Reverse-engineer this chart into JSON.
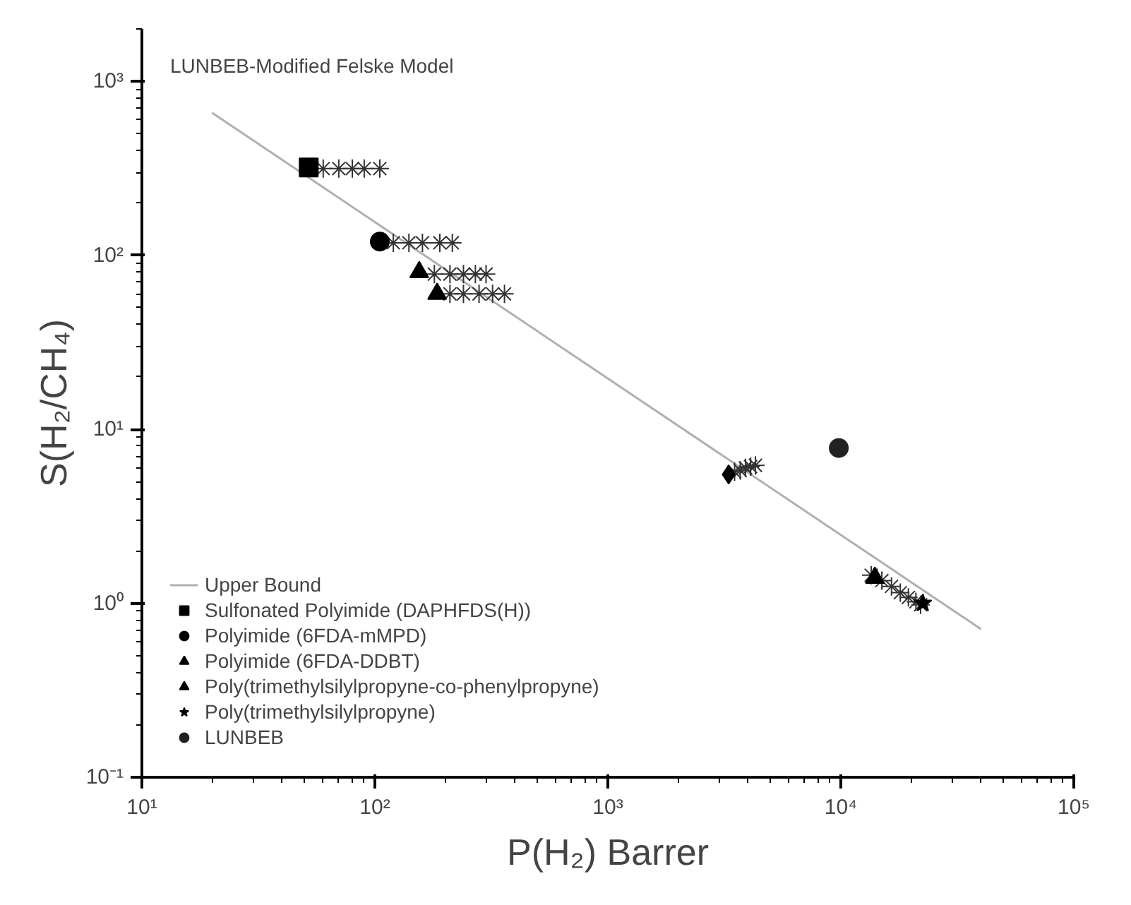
{
  "chart_data": {
    "type": "scatter",
    "title": "LUNBEB-Modified Felske Model",
    "xlabel": "P(H₂) Barrer",
    "ylabel": "S(H₂/CH₄)",
    "log": "xy",
    "grid": false,
    "legend": "bottom left",
    "xlim": [
      10,
      100000
    ],
    "ylim": [
      0.1,
      2000
    ],
    "xticks": [
      {
        "value": 10,
        "label": "10¹"
      },
      {
        "value": 100,
        "label": "10²"
      },
      {
        "value": 1000,
        "label": "10³"
      },
      {
        "value": 10000,
        "label": "10⁴"
      },
      {
        "value": 100000,
        "label": "10⁵"
      }
    ],
    "yticks": [
      {
        "value": 0.1,
        "label": "10⁻¹"
      },
      {
        "value": 1,
        "label": "10⁰"
      },
      {
        "value": 10,
        "label": "10¹"
      },
      {
        "value": 100,
        "label": "10²"
      },
      {
        "value": 1000,
        "label": "10³"
      }
    ],
    "series": [
      {
        "name": "Upper Bound",
        "type": "line",
        "color": "#b0b0b0",
        "marker": "none",
        "x": [
          20,
          40000
        ],
        "values": [
          660,
          0.71
        ]
      },
      {
        "color": "#333333",
        "marker": "cross",
        "x": [
          60,
          70,
          80,
          90,
          105,
          120,
          140,
          160,
          190,
          215,
          180,
          210,
          240,
          270,
          300,
          210,
          240,
          280,
          320,
          360,
          3500,
          3700,
          3900,
          4100,
          4300,
          13500,
          15000,
          16500,
          18000,
          19500,
          21000,
          22000
        ],
        "values": [
          315,
          315,
          315,
          315,
          315,
          118,
          118,
          118,
          118,
          118,
          78,
          78,
          78,
          78,
          78,
          60,
          60,
          60,
          60,
          60,
          5.7,
          5.8,
          6.0,
          6.1,
          6.2,
          1.45,
          1.35,
          1.25,
          1.15,
          1.08,
          1.02,
          0.98
        ]
      },
      {
        "name": "Sulfonated Polyimide (DAPHFDS(H))",
        "color": "#000000",
        "marker": "square",
        "x": [
          52
        ],
        "values": [
          320
        ]
      },
      {
        "name": "Polyimide (6FDA-mMPD)",
        "color": "#000000",
        "marker": "circle",
        "x": [
          105
        ],
        "values": [
          120
        ]
      },
      {
        "name": "Polyimide (6FDA-DDBT)",
        "color": "#000000",
        "marker": "triangle",
        "x": [
          155
        ],
        "values": [
          80
        ]
      },
      {
        "color": "#000000",
        "marker": "triangle",
        "x": [
          185
        ],
        "values": [
          60
        ]
      },
      {
        "color": "#000000",
        "marker": "diamond",
        "x": [
          3300
        ],
        "values": [
          5.5
        ]
      },
      {
        "name": "Poly(trimethylsilylpropyne-co-phenylpropyne)",
        "color": "#000000",
        "marker": "triangle",
        "x": [
          14000
        ],
        "values": [
          1.4
        ]
      },
      {
        "name": "Poly(trimethylsilylpropyne)",
        "color": "#000000",
        "marker": "star",
        "x": [
          22500
        ],
        "values": [
          1.0
        ]
      },
      {
        "name": "LUNBEB",
        "color": "#222222",
        "marker": "circle",
        "x": [
          9800
        ],
        "values": [
          7.8
        ]
      }
    ]
  }
}
